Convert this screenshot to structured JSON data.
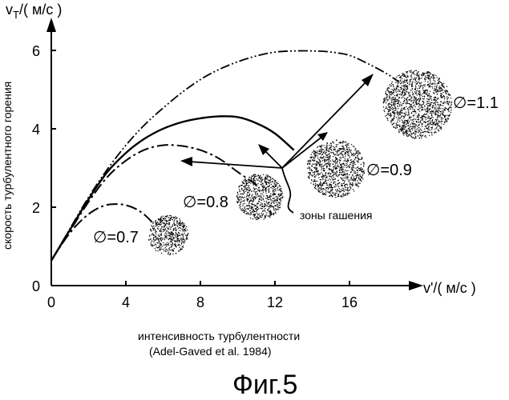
{
  "chart_data": {
    "type": "line",
    "ylabel": "скорость турбулентного горения",
    "yaxis_unit": "v",
    "yaxis_unit_sub": "T",
    "yaxis_unit_rest": "/( м/с )",
    "xaxis_unit": "v'/( м/с )",
    "xlabel": "интенсивность турбулентности",
    "source": "(Adel-Gaved et al. 1984)",
    "caption": "Фиг.5",
    "xlim": [
      0,
      19.5
    ],
    "ylim": [
      0,
      6.8
    ],
    "x_ticks": [
      "0",
      "4",
      "8",
      "12",
      "16"
    ],
    "y_ticks": [
      "0",
      "2",
      "4",
      "6"
    ],
    "grid": false,
    "annotation": "зоны гашения",
    "series": [
      {
        "phi_label": "∅=0.7",
        "style": "dash-dot",
        "x": [
          0,
          0.5,
          1,
          1.5,
          2,
          2.5,
          3,
          3.5,
          4,
          4.5,
          5,
          5.5
        ],
        "y": [
          0.65,
          1.03,
          1.37,
          1.64,
          1.86,
          2.01,
          2.1,
          2.12,
          2.09,
          2.0,
          1.84,
          1.6
        ]
      },
      {
        "phi_label": "∅=0.8",
        "style": "dash-dot",
        "x": [
          0,
          1,
          2,
          3,
          4,
          5,
          6,
          7,
          8,
          9,
          10,
          11
        ],
        "y": [
          0.65,
          1.42,
          2.18,
          2.82,
          3.25,
          3.53,
          3.65,
          3.63,
          3.52,
          3.3,
          2.95,
          2.62
        ]
      },
      {
        "phi_label": "∅=0.9",
        "style": "solid",
        "x": [
          0,
          1,
          2,
          3,
          4,
          5,
          6,
          7,
          8,
          9,
          10,
          11,
          12,
          13
        ],
        "y": [
          0.65,
          1.45,
          2.25,
          2.95,
          3.45,
          3.82,
          4.08,
          4.25,
          4.35,
          4.4,
          4.38,
          4.22,
          3.95,
          3.52
        ]
      },
      {
        "phi_label": "∅=1.1",
        "style": "dash-dot-dot",
        "x": [
          0,
          1,
          2,
          3,
          4,
          5,
          6,
          7,
          8,
          9,
          10,
          11,
          12,
          13,
          14,
          15,
          16,
          17,
          18,
          18.6
        ],
        "y": [
          0.65,
          1.48,
          2.3,
          3.02,
          3.65,
          4.18,
          4.62,
          5.02,
          5.36,
          5.62,
          5.82,
          5.97,
          6.07,
          6.1,
          6.1,
          6.07,
          5.98,
          5.76,
          5.5,
          5.3
        ]
      }
    ]
  }
}
